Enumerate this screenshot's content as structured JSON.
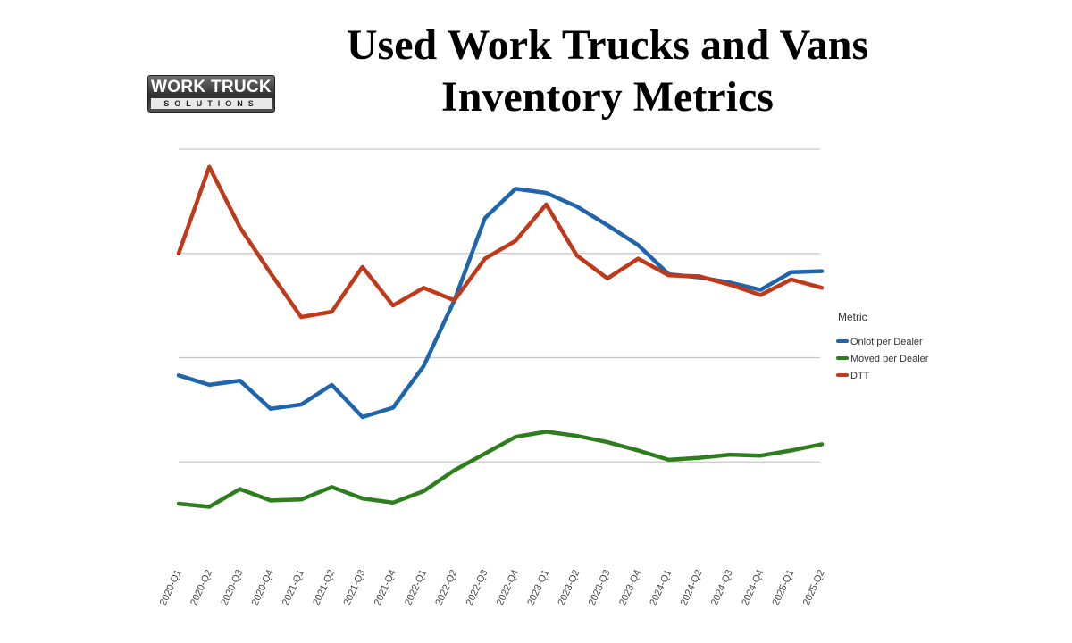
{
  "logo": {
    "main_text": "WORK TRUCK",
    "sub_text": "SOLUTIONS"
  },
  "chart_data": {
    "type": "line",
    "title": "Used Work Trucks and Vans Inventory Metrics",
    "xlabel": "",
    "ylabel": "",
    "ylim": [
      0,
      4
    ],
    "gridlines": [
      1,
      2,
      3,
      4
    ],
    "grid": true,
    "legend_placement": "right",
    "legend_title": "Metric",
    "categories": [
      "2020-Q1",
      "2020-Q2",
      "2020-Q3",
      "2020-Q4",
      "2021-Q1",
      "2021-Q2",
      "2021-Q3",
      "2021-Q4",
      "2022-Q1",
      "2022-Q2",
      "2022-Q3",
      "2022-Q4",
      "2023-Q1",
      "2023-Q2",
      "2023-Q3",
      "2023-Q4",
      "2024-Q1",
      "2024-Q2",
      "2024-Q3",
      "2024-Q4",
      "2025-Q1",
      "2025-Q2"
    ],
    "series": [
      {
        "name": "Onlot per Dealer",
        "color": "#1f65ac",
        "values": [
          1.83,
          1.74,
          1.78,
          1.51,
          1.55,
          1.74,
          1.43,
          1.52,
          1.92,
          2.55,
          3.34,
          3.62,
          3.58,
          3.45,
          3.27,
          3.08,
          2.8,
          2.77,
          2.72,
          2.65,
          2.82,
          2.83
        ]
      },
      {
        "name": "Moved per Dealer",
        "color": "#2e7d1e",
        "values": [
          0.6,
          0.57,
          0.74,
          0.63,
          0.64,
          0.76,
          0.65,
          0.61,
          0.72,
          0.92,
          1.08,
          1.24,
          1.29,
          1.25,
          1.19,
          1.11,
          1.02,
          1.04,
          1.07,
          1.06,
          1.11,
          1.17
        ]
      },
      {
        "name": "DTT",
        "color": "#c0391b",
        "values": [
          3.0,
          3.83,
          3.25,
          2.81,
          2.39,
          2.44,
          2.87,
          2.5,
          2.67,
          2.55,
          2.95,
          3.12,
          3.47,
          2.98,
          2.76,
          2.95,
          2.79,
          2.78,
          2.7,
          2.6,
          2.75,
          2.67
        ]
      }
    ]
  }
}
